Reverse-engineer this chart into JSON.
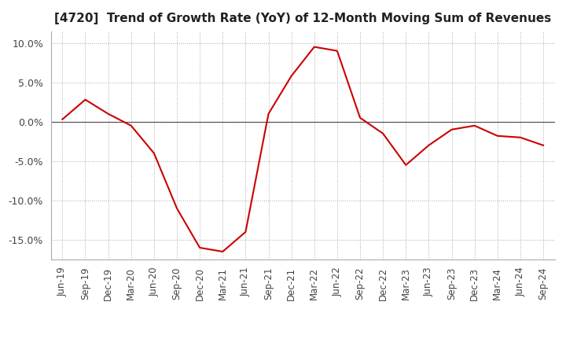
{
  "title": "[4720]  Trend of Growth Rate (YoY) of 12-Month Moving Sum of Revenues",
  "title_fontsize": 11,
  "line_color": "#cc0000",
  "background_color": "#ffffff",
  "grid_color": "#aaaaaa",
  "zero_line_color": "#555555",
  "ylim": [
    -0.175,
    0.115
  ],
  "yticks": [
    -0.15,
    -0.1,
    -0.05,
    0.0,
    0.05,
    0.1
  ],
  "x_labels": [
    "Jun-19",
    "Sep-19",
    "Dec-19",
    "Mar-20",
    "Jun-20",
    "Sep-20",
    "Dec-20",
    "Mar-21",
    "Jun-21",
    "Sep-21",
    "Dec-21",
    "Mar-22",
    "Jun-22",
    "Sep-22",
    "Dec-22",
    "Mar-23",
    "Jun-23",
    "Sep-23",
    "Dec-23",
    "Mar-24",
    "Jun-24",
    "Sep-24"
  ],
  "values": [
    0.003,
    0.028,
    0.01,
    -0.005,
    -0.04,
    -0.11,
    -0.16,
    -0.165,
    -0.14,
    0.01,
    0.058,
    0.095,
    0.09,
    0.005,
    -0.015,
    -0.055,
    -0.03,
    -0.01,
    -0.005,
    -0.018,
    -0.02,
    -0.03
  ]
}
